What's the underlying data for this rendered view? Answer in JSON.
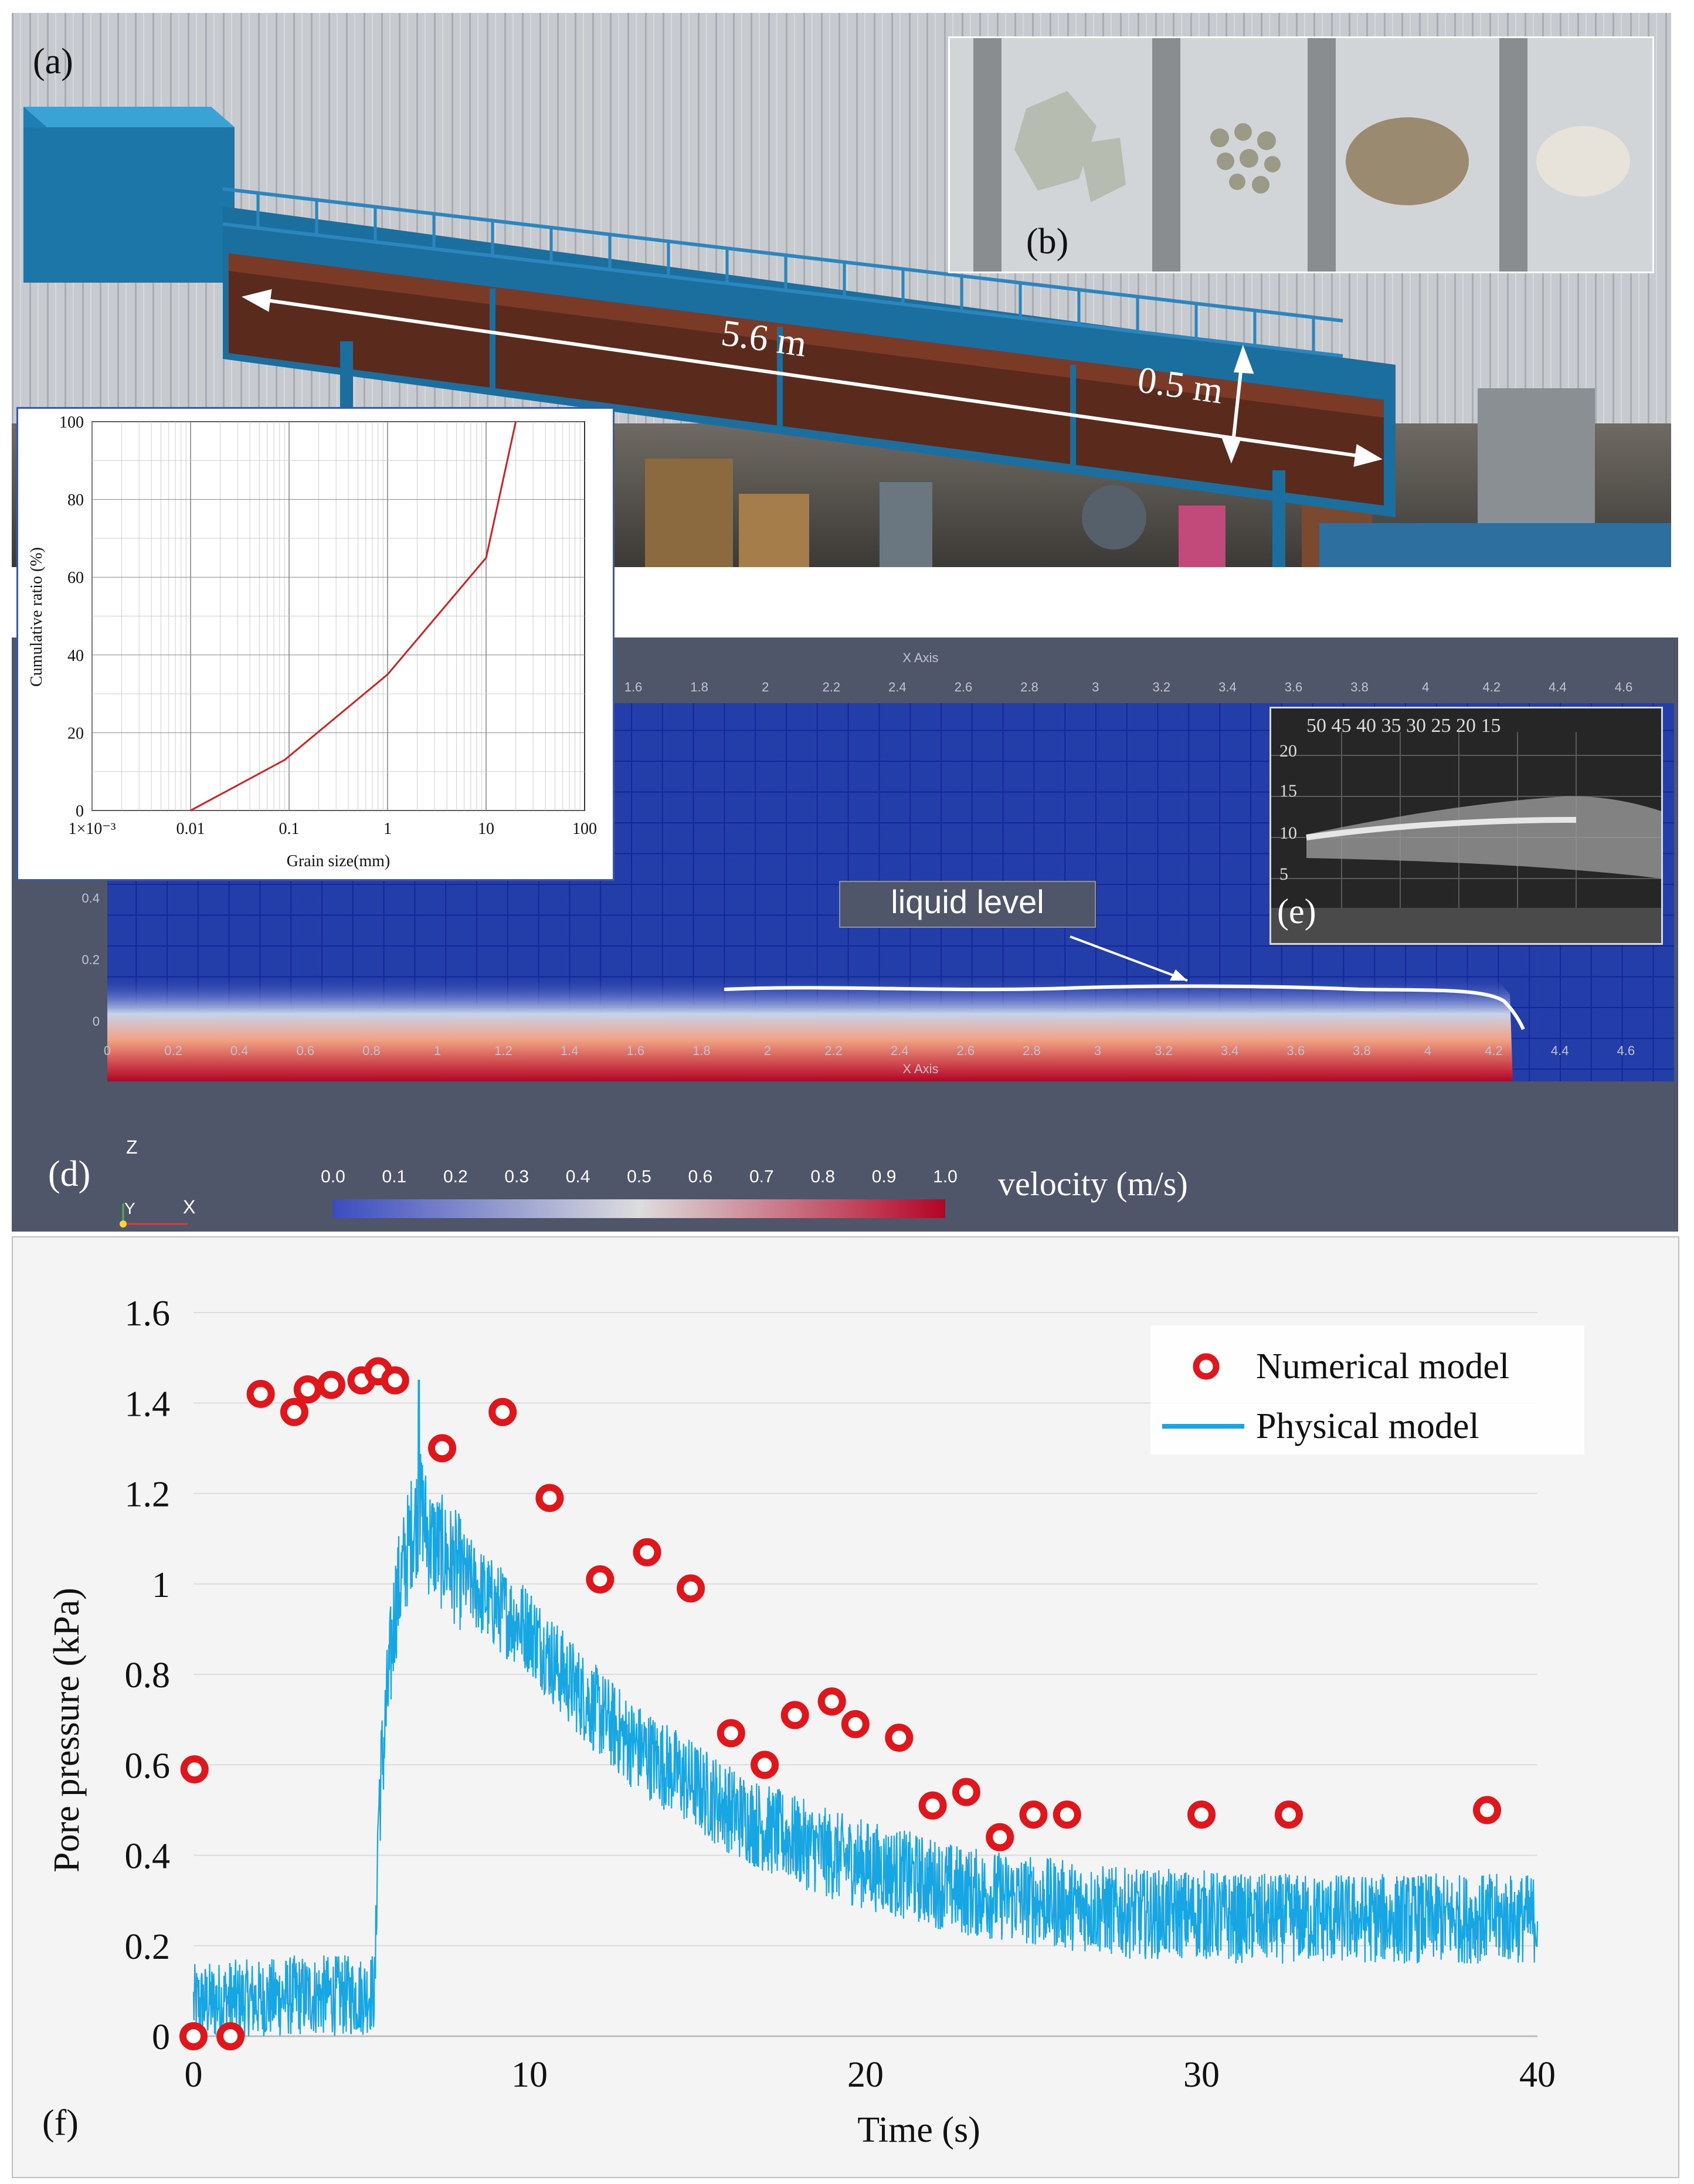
{
  "panel_a": {
    "letter": "(a)",
    "length_label": "5.6  m",
    "height_label": "0.5  m"
  },
  "panel_b": {
    "letter": "(b)"
  },
  "panel_c": {
    "chart_data": {
      "type": "line",
      "xlabel": "Grain size(mm)",
      "ylabel": "Cumulative ratio (%)",
      "x_scale": "log",
      "xlim": [
        0.001,
        100
      ],
      "ylim": [
        0,
        100
      ],
      "x_tick_labels": [
        "1×10⁻³",
        "0.01",
        "0.1",
        "1",
        "10",
        "100"
      ],
      "y_tick_labels": [
        "0",
        "20",
        "40",
        "60",
        "80",
        "100"
      ],
      "grid": true,
      "line_color": "#d42020",
      "series": [
        {
          "x": [
            0.01,
            0.09,
            1.0,
            10.0,
            20.0
          ],
          "y": [
            0,
            13,
            35,
            65,
            100
          ]
        }
      ]
    }
  },
  "panel_d": {
    "letter": "(d)",
    "axis_title": "X Axis",
    "top_ticks": [
      "1.6",
      "1.8",
      "2",
      "2.2",
      "2.4",
      "2.6",
      "2.8",
      "3",
      "3.2",
      "3.4",
      "3.6",
      "3.8",
      "4",
      "4.2",
      "4.4",
      "4.6"
    ],
    "bottom_ticks": [
      "0",
      "0.2",
      "0.4",
      "0.6",
      "0.8",
      "1",
      "1.2",
      "1.4",
      "1.6",
      "1.8",
      "2",
      "2.2",
      "2.4",
      "2.6",
      "2.8",
      "3",
      "3.2",
      "3.4",
      "3.6",
      "3.8",
      "4",
      "4.2",
      "4.4",
      "4.6"
    ],
    "left_ticks": [
      "0.4",
      "0.2",
      "0"
    ],
    "annotation": "liquid level",
    "colorbar_ticks": [
      "0.0",
      "0.1",
      "0.2",
      "0.3",
      "0.4",
      "0.5",
      "0.6",
      "0.7",
      "0.8",
      "0.9",
      "1.0"
    ],
    "colorbar_label": "velocity (m/s)",
    "orientation_axes": {
      "z": "Z",
      "y": "Y",
      "x": "X"
    },
    "colorbar_colors": [
      "#3b4cc0",
      "#dddddd",
      "#b40426"
    ]
  },
  "panel_e": {
    "letter": "(e)",
    "handwritten_scale": "50 45 40 35 30 25 20 15",
    "left_marks": [
      "20",
      "15",
      "10",
      "5"
    ]
  },
  "panel_f": {
    "letter": "(f)",
    "chart_data": {
      "type": "scatter",
      "xlabel": "Time (s)",
      "ylabel": "Pore pressure (kPa)",
      "xlim": [
        0,
        40
      ],
      "ylim": [
        0,
        1.6
      ],
      "x_ticks": [
        0,
        10,
        20,
        30,
        40
      ],
      "y_ticks": [
        0,
        0.2,
        0.4,
        0.6,
        0.8,
        1,
        1.2,
        1.4,
        1.6
      ],
      "y_tick_labels": [
        "0",
        "0.2",
        "0.4",
        "0.6",
        "0.8",
        "1",
        "1.2",
        "1.4",
        "1.6"
      ],
      "grid": true,
      "legend_position": "top-right",
      "series": [
        {
          "name": "Numerical model",
          "kind": "marker",
          "color": "#e0161b",
          "x": [
            0,
            1.1,
            0.03,
            2.0,
            3.0,
            3.4,
            4.1,
            5.0,
            5.5,
            6.0,
            7.4,
            9.2,
            10.6,
            12.1,
            13.5,
            14.8,
            16.0,
            17.0,
            17.9,
            19.0,
            19.7,
            21.0,
            22.0,
            23.0,
            24.0,
            25.0,
            26.0,
            30.0,
            32.6,
            38.5
          ],
          "y": [
            0,
            0,
            0.59,
            1.42,
            1.38,
            1.43,
            1.44,
            1.45,
            1.47,
            1.45,
            1.3,
            1.38,
            1.19,
            1.01,
            1.07,
            0.99,
            0.67,
            0.6,
            0.71,
            0.74,
            0.69,
            0.66,
            0.51,
            0.54,
            0.44,
            0.49,
            0.49,
            0.49,
            0.49,
            0.5
          ]
        },
        {
          "name": "Physical model",
          "kind": "line",
          "color": "#16a6e3",
          "envelope": {
            "time": [
              0,
              1,
              2,
              3,
              4,
              5,
              5.4,
              5.5,
              6.0,
              6.5,
              6.8,
              7.0,
              8,
              9,
              10,
              11,
              12,
              13,
              14,
              15,
              16,
              17,
              18,
              19,
              20,
              21,
              22,
              23,
              24,
              25,
              26,
              27,
              28,
              29,
              30,
              31,
              32,
              33,
              34,
              35,
              36,
              37,
              38,
              39,
              40
            ],
            "mean": [
              0.07,
              0.08,
              0.08,
              0.09,
              0.09,
              0.09,
              0.1,
              0.5,
              0.95,
              1.12,
              1.17,
              1.1,
              1.02,
              0.95,
              0.9,
              0.8,
              0.72,
              0.65,
              0.6,
              0.55,
              0.5,
              0.46,
              0.43,
              0.4,
              0.38,
              0.36,
              0.34,
              0.32,
              0.31,
              0.3,
              0.29,
              0.28,
              0.27,
              0.27,
              0.27,
              0.26,
              0.26,
              0.26,
              0.26,
              0.26,
              0.26,
              0.26,
              0.26,
              0.26,
              0.26
            ],
            "noise": 0.1,
            "spike": {
              "t": 6.7,
              "y": 1.45
            }
          }
        }
      ]
    }
  }
}
